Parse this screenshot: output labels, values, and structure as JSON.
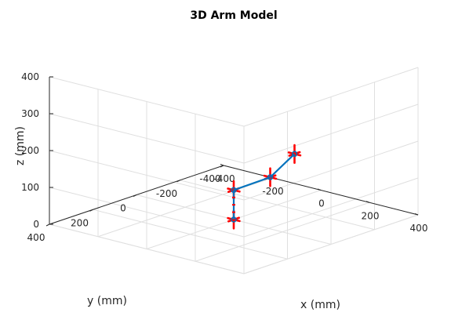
{
  "chart_data": {
    "type": "line3d",
    "title": "3D Arm Model",
    "xlabel": "x (mm)",
    "ylabel": "y (mm)",
    "zlabel": "z (mm)",
    "xlim": [
      -400,
      400
    ],
    "ylim": [
      -400,
      400
    ],
    "zlim": [
      0,
      400
    ],
    "x_ticks": [
      -400,
      -200,
      0,
      200,
      400
    ],
    "y_ticks": [
      -400,
      -200,
      0,
      200,
      400
    ],
    "z_ticks": [
      0,
      100,
      200,
      300,
      400
    ],
    "grid": true,
    "arm": {
      "color": "#0072bd",
      "joint_points": [
        {
          "x": 0,
          "y": 0,
          "z": 0
        },
        {
          "x": 0,
          "y": 0,
          "z": 80
        },
        {
          "x": 150,
          "y": 0,
          "z": 140
        },
        {
          "x": 250,
          "y": 0,
          "z": 220
        }
      ]
    },
    "frames": {
      "color": "#ff0000",
      "length": 40,
      "points": [
        {
          "x": 0,
          "y": 0,
          "z": 0
        },
        {
          "x": 0,
          "y": 0,
          "z": 80
        },
        {
          "x": 150,
          "y": 0,
          "z": 140
        },
        {
          "x": 250,
          "y": 0,
          "z": 220
        }
      ]
    }
  }
}
